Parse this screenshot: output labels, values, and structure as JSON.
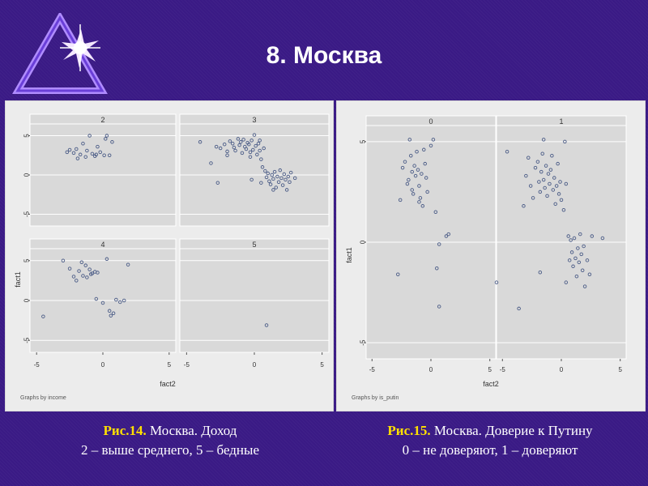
{
  "slide": {
    "title": "8. Москва",
    "caption_left": {
      "label": "Рис.14.",
      "text": " Москва. Доход",
      "line2": "2 – выше среднего, 5 – бедные"
    },
    "caption_right": {
      "label": "Рис.15.",
      "text": " Москва. Доверие к Путину",
      "line2": "0 – не доверяют, 1 – доверяют"
    }
  },
  "colors": {
    "background": "#3a1a85",
    "panel": "#ececec",
    "plot_bg": "#d9d9d9",
    "marker": "#4a5b86",
    "caption_label": "#ffe000",
    "text": "#ffffff"
  },
  "chart_data": [
    {
      "type": "scatter",
      "by_note": "Graphs by income",
      "xlabel": "fact2",
      "ylabel": "fact1",
      "xlim": [
        -5.5,
        5.5
      ],
      "ylim": [
        -6.5,
        6.5
      ],
      "xticks": [
        -5,
        0,
        5
      ],
      "yticks": [
        -5,
        0,
        5
      ],
      "tick_labels_x": [
        "-5",
        "0",
        "5"
      ],
      "tick_labels_y": [
        "-5",
        "0",
        "5"
      ],
      "grid": true,
      "panels": [
        {
          "title": "2",
          "points": [
            [
              -2.5,
              3.2
            ],
            [
              -2.2,
              2.8
            ],
            [
              -2.0,
              3.3
            ],
            [
              -1.9,
              2.1
            ],
            [
              -1.7,
              2.6
            ],
            [
              -1.5,
              4.0
            ],
            [
              -1.3,
              2.3
            ],
            [
              -1.2,
              3.1
            ],
            [
              -1.0,
              5.0
            ],
            [
              -0.8,
              2.7
            ],
            [
              -0.6,
              2.4
            ],
            [
              -0.4,
              3.6
            ],
            [
              -0.2,
              2.9
            ],
            [
              0.1,
              2.5
            ],
            [
              0.2,
              4.6
            ],
            [
              0.3,
              5.0
            ],
            [
              0.5,
              2.5
            ],
            [
              0.7,
              4.2
            ],
            [
              -2.7,
              2.9
            ],
            [
              -0.5,
              2.6
            ]
          ]
        },
        {
          "title": "3",
          "points": [
            [
              -4.0,
              4.2
            ],
            [
              -3.2,
              1.5
            ],
            [
              -2.8,
              3.6
            ],
            [
              -2.7,
              -1.0
            ],
            [
              -2.5,
              3.4
            ],
            [
              -2.2,
              3.9
            ],
            [
              -2.0,
              2.5
            ],
            [
              -1.8,
              4.3
            ],
            [
              -1.6,
              4.0
            ],
            [
              -1.5,
              3.5
            ],
            [
              -1.4,
              3.1
            ],
            [
              -1.2,
              4.6
            ],
            [
              -1.1,
              3.8
            ],
            [
              -1.0,
              4.2
            ],
            [
              -0.9,
              2.8
            ],
            [
              -0.8,
              4.5
            ],
            [
              -0.7,
              3.6
            ],
            [
              -0.6,
              3.3
            ],
            [
              -0.5,
              4.1
            ],
            [
              -0.4,
              3.9
            ],
            [
              -0.3,
              2.9
            ],
            [
              -0.2,
              4.4
            ],
            [
              -0.1,
              3.2
            ],
            [
              0.0,
              5.1
            ],
            [
              0.1,
              3.7
            ],
            [
              0.2,
              2.6
            ],
            [
              0.3,
              4.0
            ],
            [
              0.4,
              3.1
            ],
            [
              0.5,
              2.0
            ],
            [
              0.6,
              1.0
            ],
            [
              0.7,
              3.4
            ],
            [
              0.8,
              0.5
            ],
            [
              0.9,
              -0.3
            ],
            [
              1.0,
              0.2
            ],
            [
              1.1,
              -0.8
            ],
            [
              1.2,
              -1.2
            ],
            [
              1.3,
              0.0
            ],
            [
              1.4,
              -0.5
            ],
            [
              1.5,
              0.4
            ],
            [
              1.6,
              -1.6
            ],
            [
              1.7,
              -0.2
            ],
            [
              1.8,
              -0.9
            ],
            [
              1.9,
              0.6
            ],
            [
              2.0,
              -0.4
            ],
            [
              2.1,
              -1.3
            ],
            [
              2.2,
              0.1
            ],
            [
              2.3,
              -0.6
            ],
            [
              2.4,
              -1.9
            ],
            [
              2.5,
              -0.2
            ],
            [
              2.6,
              -0.9
            ],
            [
              2.7,
              0.3
            ],
            [
              3.0,
              -0.4
            ],
            [
              0.5,
              -1.0
            ],
            [
              1.4,
              -1.9
            ],
            [
              -0.2,
              -0.6
            ],
            [
              -2.0,
              3.0
            ],
            [
              -0.3,
              2.3
            ],
            [
              0.4,
              4.4
            ]
          ]
        },
        {
          "title": "4",
          "points": [
            [
              -4.5,
              -2.0
            ],
            [
              -3.0,
              5.0
            ],
            [
              -2.5,
              4.0
            ],
            [
              -2.2,
              3.0
            ],
            [
              -2.0,
              2.5
            ],
            [
              -1.8,
              3.7
            ],
            [
              -1.5,
              3.1
            ],
            [
              -1.3,
              4.4
            ],
            [
              -1.2,
              2.9
            ],
            [
              -1.0,
              3.9
            ],
            [
              -0.8,
              3.4
            ],
            [
              -0.6,
              3.6
            ],
            [
              -0.4,
              3.5
            ],
            [
              -0.5,
              0.2
            ],
            [
              0.0,
              -0.3
            ],
            [
              0.3,
              5.2
            ],
            [
              0.5,
              -1.3
            ],
            [
              0.6,
              -1.9
            ],
            [
              0.8,
              -1.6
            ],
            [
              1.0,
              0.1
            ],
            [
              1.3,
              -0.2
            ],
            [
              1.6,
              0.0
            ],
            [
              1.9,
              4.5
            ],
            [
              -1.6,
              4.8
            ],
            [
              -0.9,
              3.3
            ]
          ]
        },
        {
          "title": "5",
          "points": [
            [
              0.9,
              -3.1
            ]
          ]
        }
      ]
    },
    {
      "type": "scatter",
      "by_note": "Graphs by is_putin",
      "xlabel": "fact2",
      "ylabel": "fact1",
      "xlim": [
        -5.5,
        5.5
      ],
      "ylim": [
        -5.8,
        5.8
      ],
      "xticks": [
        -5,
        0,
        5
      ],
      "yticks": [
        -5,
        0,
        5
      ],
      "tick_labels_x": [
        "-5",
        "0",
        "5"
      ],
      "tick_labels_y": [
        "-5",
        "0",
        "5"
      ],
      "grid": true,
      "panels": [
        {
          "title": "0",
          "points": [
            [
              -2.6,
              2.1
            ],
            [
              -2.4,
              3.7
            ],
            [
              -2.2,
              4.0
            ],
            [
              -2.0,
              2.9
            ],
            [
              -1.9,
              3.1
            ],
            [
              -1.8,
              5.1
            ],
            [
              -1.7,
              4.3
            ],
            [
              -1.6,
              3.5
            ],
            [
              -1.5,
              2.4
            ],
            [
              -1.4,
              3.8
            ],
            [
              -1.3,
              3.3
            ],
            [
              -1.2,
              4.5
            ],
            [
              -1.1,
              3.6
            ],
            [
              -1.0,
              2.8
            ],
            [
              -0.9,
              2.2
            ],
            [
              -0.8,
              3.4
            ],
            [
              -0.7,
              1.8
            ],
            [
              -0.6,
              4.6
            ],
            [
              -0.5,
              3.9
            ],
            [
              -0.4,
              3.2
            ],
            [
              -0.3,
              2.5
            ],
            [
              0.0,
              4.8
            ],
            [
              0.2,
              5.1
            ],
            [
              0.4,
              1.5
            ],
            [
              0.7,
              -0.1
            ],
            [
              1.3,
              0.3
            ],
            [
              1.5,
              0.4
            ],
            [
              0.5,
              -1.3
            ],
            [
              0.7,
              -3.2
            ],
            [
              -2.8,
              -1.6
            ],
            [
              -1.0,
              2.0
            ],
            [
              -1.6,
              2.6
            ]
          ]
        },
        {
          "title": "1",
          "points": [
            [
              -5.5,
              -2.0
            ],
            [
              -4.6,
              4.5
            ],
            [
              -3.6,
              -3.3
            ],
            [
              -3.2,
              1.8
            ],
            [
              -3.0,
              3.3
            ],
            [
              -2.8,
              4.2
            ],
            [
              -2.6,
              2.8
            ],
            [
              -2.4,
              2.2
            ],
            [
              -2.2,
              3.7
            ],
            [
              -2.0,
              4.0
            ],
            [
              -1.9,
              3.0
            ],
            [
              -1.8,
              2.5
            ],
            [
              -1.7,
              3.5
            ],
            [
              -1.6,
              4.4
            ],
            [
              -1.5,
              3.1
            ],
            [
              -1.4,
              2.7
            ],
            [
              -1.3,
              3.8
            ],
            [
              -1.2,
              2.3
            ],
            [
              -1.1,
              3.4
            ],
            [
              -1.0,
              2.9
            ],
            [
              -0.9,
              3.6
            ],
            [
              -0.8,
              4.3
            ],
            [
              -0.7,
              2.6
            ],
            [
              -0.6,
              3.2
            ],
            [
              -0.5,
              1.9
            ],
            [
              -0.4,
              2.8
            ],
            [
              -0.3,
              3.9
            ],
            [
              -0.2,
              2.4
            ],
            [
              -0.1,
              3.0
            ],
            [
              0.0,
              2.1
            ],
            [
              0.2,
              1.6
            ],
            [
              0.4,
              2.9
            ],
            [
              0.6,
              0.3
            ],
            [
              0.7,
              -0.9
            ],
            [
              0.8,
              0.1
            ],
            [
              0.9,
              -0.5
            ],
            [
              1.0,
              -1.2
            ],
            [
              1.1,
              0.2
            ],
            [
              1.2,
              -0.8
            ],
            [
              1.3,
              -1.7
            ],
            [
              1.4,
              -0.3
            ],
            [
              1.5,
              -1.0
            ],
            [
              1.6,
              0.4
            ],
            [
              1.7,
              -0.6
            ],
            [
              1.8,
              -1.4
            ],
            [
              1.9,
              -0.2
            ],
            [
              2.0,
              -2.2
            ],
            [
              2.2,
              -0.9
            ],
            [
              2.4,
              -1.6
            ],
            [
              2.6,
              0.3
            ],
            [
              3.5,
              0.2
            ],
            [
              -1.8,
              -1.5
            ],
            [
              0.3,
              5.0
            ],
            [
              -1.5,
              5.1
            ],
            [
              0.4,
              -2.0
            ]
          ]
        }
      ]
    }
  ]
}
